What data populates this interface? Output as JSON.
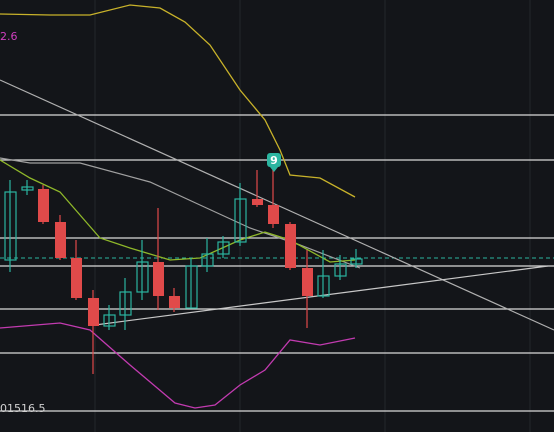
{
  "labels": {
    "top_left_value": "2.6",
    "marker_badge": "9",
    "bottom_left_value": "01516.5"
  }
}
